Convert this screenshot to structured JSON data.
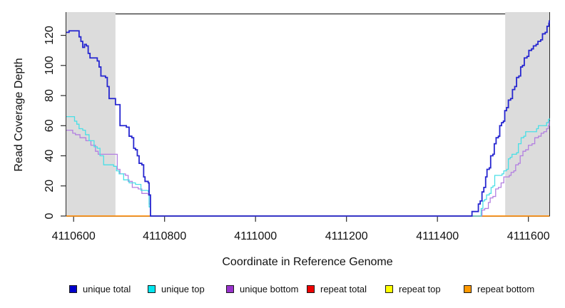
{
  "chart_data": {
    "type": "line",
    "title": "",
    "xlabel": "Coordinate in Reference Genome",
    "ylabel": "Read Coverage Depth",
    "xlim": [
      4110584,
      4111646
    ],
    "ylim": [
      0,
      134
    ],
    "x_ticks": [
      4110600,
      4110800,
      4111000,
      4111200,
      4111400,
      4111600
    ],
    "y_ticks": [
      0,
      20,
      40,
      60,
      80,
      100,
      120
    ],
    "grid": false,
    "legend_position": "bottom",
    "shaded_regions": [
      {
        "name": "left-repeat-region",
        "x0": 4110584,
        "x1": 4110692,
        "color": "#dcdcdc"
      },
      {
        "name": "right-repeat-region",
        "x0": 4111549,
        "x1": 4111646,
        "color": "#dcdcdc"
      }
    ],
    "series": [
      {
        "name": "repeat total",
        "color": "#e00000",
        "points": [
          [
            4110584,
            0
          ],
          [
            4111646,
            0
          ]
        ]
      },
      {
        "name": "repeat top",
        "color": "#ffff00",
        "points": [
          [
            4110584,
            0
          ],
          [
            4111646,
            0
          ]
        ]
      },
      {
        "name": "repeat bottom",
        "color": "#ff9014",
        "points": [
          [
            4110584,
            0
          ],
          [
            4111646,
            0
          ]
        ]
      },
      {
        "name": "unique bottom",
        "color": "#b27fe0",
        "points": [
          [
            4110584,
            57
          ],
          [
            4110598,
            55
          ],
          [
            4110604,
            54
          ],
          [
            4110614,
            52
          ],
          [
            4110627,
            50
          ],
          [
            4110638,
            47
          ],
          [
            4110648,
            43
          ],
          [
            4110654,
            41
          ],
          [
            4110696,
            31
          ],
          [
            4110702,
            28
          ],
          [
            4110714,
            27
          ],
          [
            4110720,
            23
          ],
          [
            4110729,
            19
          ],
          [
            4110742,
            18
          ],
          [
            4110750,
            15
          ],
          [
            4110764,
            14
          ],
          [
            4110766,
            8
          ],
          [
            4110769,
            0
          ],
          [
            4111498,
            4
          ],
          [
            4111504,
            5
          ],
          [
            4111512,
            9
          ],
          [
            4111516,
            12
          ],
          [
            4111522,
            13
          ],
          [
            4111528,
            18
          ],
          [
            4111534,
            19
          ],
          [
            4111540,
            22
          ],
          [
            4111546,
            26
          ],
          [
            4111558,
            27
          ],
          [
            4111562,
            29
          ],
          [
            4111568,
            30
          ],
          [
            4111572,
            34
          ],
          [
            4111578,
            35
          ],
          [
            4111582,
            40
          ],
          [
            4111588,
            43
          ],
          [
            4111594,
            44
          ],
          [
            4111600,
            47
          ],
          [
            4111608,
            48
          ],
          [
            4111614,
            52
          ],
          [
            4111622,
            53
          ],
          [
            4111628,
            55
          ],
          [
            4111634,
            56
          ],
          [
            4111640,
            58
          ],
          [
            4111644,
            60
          ],
          [
            4111646,
            63
          ]
        ]
      },
      {
        "name": "unique top",
        "color": "#49dfe6",
        "points": [
          [
            4110584,
            66
          ],
          [
            4110602,
            63
          ],
          [
            4110607,
            61
          ],
          [
            4110612,
            58
          ],
          [
            4110620,
            57
          ],
          [
            4110626,
            54
          ],
          [
            4110634,
            50
          ],
          [
            4110645,
            46
          ],
          [
            4110652,
            45
          ],
          [
            4110658,
            40
          ],
          [
            4110666,
            34
          ],
          [
            4110688,
            33
          ],
          [
            4110694,
            30
          ],
          [
            4110700,
            28
          ],
          [
            4110710,
            24
          ],
          [
            4110722,
            22
          ],
          [
            4110736,
            21
          ],
          [
            4110748,
            17
          ],
          [
            4110764,
            16
          ],
          [
            4110766,
            6
          ],
          [
            4110769,
            0
          ],
          [
            4111496,
            5
          ],
          [
            4111500,
            10
          ],
          [
            4111504,
            11
          ],
          [
            4111508,
            14
          ],
          [
            4111514,
            15
          ],
          [
            4111518,
            19
          ],
          [
            4111522,
            20
          ],
          [
            4111526,
            27
          ],
          [
            4111542,
            28
          ],
          [
            4111546,
            30
          ],
          [
            4111552,
            31
          ],
          [
            4111556,
            38
          ],
          [
            4111560,
            39
          ],
          [
            4111564,
            41
          ],
          [
            4111574,
            42
          ],
          [
            4111578,
            48
          ],
          [
            4111584,
            52
          ],
          [
            4111590,
            53
          ],
          [
            4111594,
            56
          ],
          [
            4111618,
            58
          ],
          [
            4111622,
            60
          ],
          [
            4111640,
            62
          ],
          [
            4111644,
            64
          ],
          [
            4111646,
            65
          ]
        ]
      },
      {
        "name": "unique total",
        "color": "#2626d0",
        "points": [
          [
            4110584,
            122
          ],
          [
            4110590,
            123
          ],
          [
            4110612,
            119
          ],
          [
            4110616,
            116
          ],
          [
            4110620,
            112
          ],
          [
            4110624,
            114
          ],
          [
            4110628,
            113
          ],
          [
            4110632,
            108
          ],
          [
            4110636,
            105
          ],
          [
            4110652,
            103
          ],
          [
            4110656,
            99
          ],
          [
            4110660,
            93
          ],
          [
            4110670,
            92
          ],
          [
            4110674,
            86
          ],
          [
            4110678,
            78
          ],
          [
            4110692,
            74
          ],
          [
            4110702,
            60
          ],
          [
            4110716,
            59
          ],
          [
            4110722,
            53
          ],
          [
            4110728,
            52
          ],
          [
            4110732,
            45
          ],
          [
            4110736,
            44
          ],
          [
            4110740,
            40
          ],
          [
            4110744,
            35
          ],
          [
            4110750,
            34
          ],
          [
            4110754,
            26
          ],
          [
            4110757,
            23
          ],
          [
            4110764,
            22
          ],
          [
            4110766,
            14
          ],
          [
            4110769,
            0
          ],
          [
            4111476,
            3
          ],
          [
            4111490,
            8
          ],
          [
            4111494,
            10
          ],
          [
            4111498,
            16
          ],
          [
            4111502,
            19
          ],
          [
            4111506,
            26
          ],
          [
            4111509,
            31
          ],
          [
            4111514,
            32
          ],
          [
            4111517,
            40
          ],
          [
            4111522,
            41
          ],
          [
            4111525,
            48
          ],
          [
            4111529,
            52
          ],
          [
            4111534,
            53
          ],
          [
            4111537,
            60
          ],
          [
            4111541,
            62
          ],
          [
            4111545,
            63
          ],
          [
            4111548,
            70
          ],
          [
            4111552,
            72
          ],
          [
            4111556,
            77
          ],
          [
            4111561,
            78
          ],
          [
            4111565,
            84
          ],
          [
            4111570,
            86
          ],
          [
            4111574,
            92
          ],
          [
            4111579,
            93
          ],
          [
            4111583,
            99
          ],
          [
            4111587,
            100
          ],
          [
            4111591,
            105
          ],
          [
            4111597,
            106
          ],
          [
            4111601,
            110
          ],
          [
            4111607,
            111
          ],
          [
            4111611,
            113
          ],
          [
            4111617,
            114
          ],
          [
            4111621,
            116
          ],
          [
            4111627,
            117
          ],
          [
            4111631,
            121
          ],
          [
            4111637,
            122
          ],
          [
            4111641,
            126
          ],
          [
            4111645,
            128
          ],
          [
            4111646,
            130
          ]
        ]
      }
    ],
    "legend": [
      {
        "label": "unique total",
        "color": "#0000cc"
      },
      {
        "label": "unique top",
        "color": "#00e5ee"
      },
      {
        "label": "unique bottom",
        "color": "#9932cc"
      },
      {
        "label": "repeat total",
        "color": "#ee0000"
      },
      {
        "label": "repeat top",
        "color": "#ffff00"
      },
      {
        "label": "repeat bottom",
        "color": "#ff9900"
      }
    ]
  }
}
